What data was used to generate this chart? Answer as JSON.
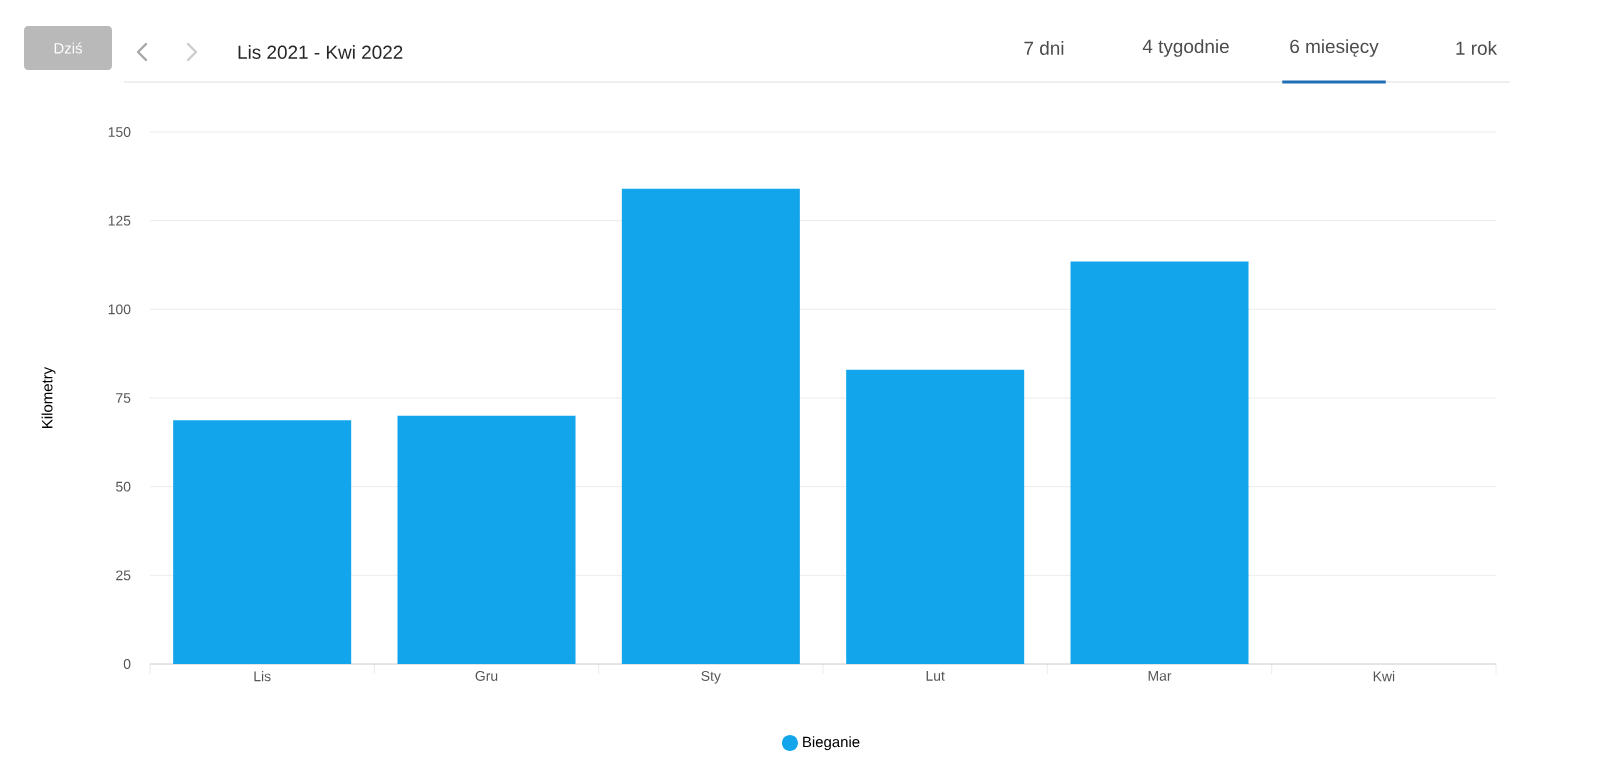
{
  "chart_data": {
    "type": "bar",
    "title": "Lis 2021 - Kwi 2022",
    "annotations": [
      "Dziś",
      "7 dni",
      "4 tygodnie",
      "6 miesięcy",
      "1 rok"
    ],
    "ylabel": "Kilometry",
    "categories": [
      "Lis",
      "Gru",
      "Sty",
      "Lut",
      "Mar",
      "Kwi"
    ],
    "series": [
      {
        "name": "Bieganie",
        "color": "#12a5ec",
        "values": [
          68.7,
          70,
          134,
          83,
          113.5,
          null
        ]
      }
    ],
    "ylim": [
      0,
      150
    ],
    "yticks": [
      0,
      25,
      50,
      75,
      100,
      125,
      150
    ],
    "grid": "y",
    "legend": "bottom",
    "marker": "circle"
  }
}
